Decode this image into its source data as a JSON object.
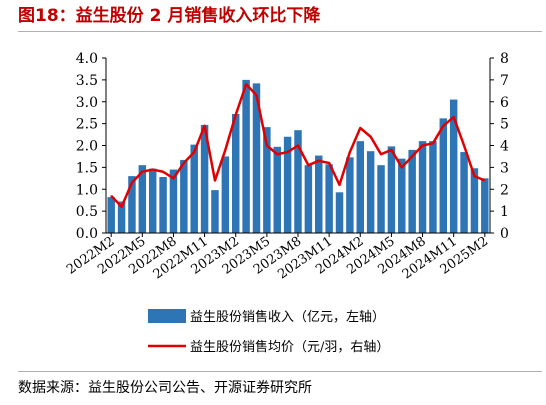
{
  "title": "图18：益生股份 2 月销售收入环比下降",
  "source": "数据来源：益生股份公司公告、开源证券研究所",
  "colors": {
    "bar": "#2E75B6",
    "line": "#E00000",
    "title": "#C00000"
  },
  "chart_data": {
    "type": "bar+line",
    "categories": [
      "2022M2",
      "2022M3",
      "2022M4",
      "2022M5",
      "2022M6",
      "2022M7",
      "2022M8",
      "2022M9",
      "2022M10",
      "2022M11",
      "2022M12",
      "2023M1",
      "2023M2",
      "2023M3",
      "2023M4",
      "2023M5",
      "2023M6",
      "2023M7",
      "2023M8",
      "2023M9",
      "2023M10",
      "2023M11",
      "2023M12",
      "2024M1",
      "2024M2",
      "2024M3",
      "2024M4",
      "2024M5",
      "2024M6",
      "2024M7",
      "2024M8",
      "2024M9",
      "2024M10",
      "2024M11",
      "2024M12",
      "2025M1",
      "2025M2"
    ],
    "x_tick_labels": [
      "2022M2",
      "2022M5",
      "2022M8",
      "2022M11",
      "2023M2",
      "2023M5",
      "2023M8",
      "2023M11",
      "2024M2",
      "2024M5",
      "2024M8",
      "2024M11",
      "2025M2"
    ],
    "series": [
      {
        "name": "益生股份销售收入（亿元，左轴）",
        "type": "bar",
        "axis": "left",
        "values": [
          0.82,
          0.72,
          1.3,
          1.55,
          1.47,
          1.28,
          1.45,
          1.67,
          2.02,
          2.47,
          0.98,
          1.75,
          2.72,
          3.5,
          3.42,
          2.42,
          1.97,
          2.2,
          2.35,
          1.55,
          1.77,
          1.57,
          0.93,
          1.73,
          2.1,
          1.87,
          1.55,
          1.98,
          1.7,
          1.9,
          2.1,
          2.1,
          2.62,
          3.05,
          1.85,
          1.48,
          1.25
        ]
      },
      {
        "name": "益生股份销售均价（元/羽，右轴）",
        "type": "line",
        "axis": "right",
        "values": [
          1.7,
          1.2,
          2.3,
          2.8,
          2.9,
          2.8,
          2.5,
          3.2,
          3.7,
          4.9,
          2.4,
          3.8,
          5.4,
          6.8,
          6.3,
          4.0,
          3.6,
          3.7,
          4.0,
          3.1,
          3.3,
          3.2,
          2.2,
          3.7,
          4.8,
          4.4,
          3.6,
          3.8,
          3.0,
          3.5,
          4.0,
          4.1,
          4.9,
          5.3,
          4.0,
          2.6,
          2.4
        ]
      }
    ],
    "y_left": {
      "lim": [
        0,
        4
      ],
      "ticks": [
        "0.0",
        "0.5",
        "1.0",
        "1.5",
        "2.0",
        "2.5",
        "3.0",
        "3.5",
        "4.0"
      ]
    },
    "y_right": {
      "lim": [
        0,
        8
      ],
      "ticks": [
        "0",
        "1",
        "2",
        "3",
        "4",
        "5",
        "6",
        "7",
        "8"
      ]
    },
    "grid": false,
    "legend_position": "bottom",
    "legend": [
      "益生股份销售收入（亿元，左轴）",
      "益生股份销售均价（元/羽，右轴）"
    ]
  }
}
